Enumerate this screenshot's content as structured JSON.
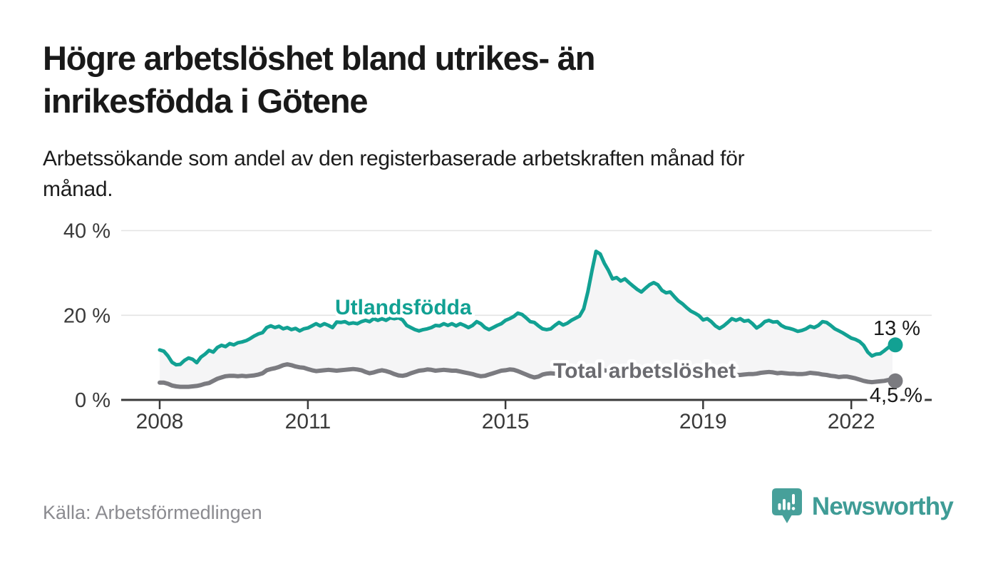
{
  "header": {
    "title_line1": "Högre arbetslöshet bland utrikes- än",
    "title_line2": "inrikesfödda i Götene",
    "subtitle_line1": "Arbetssökande som andel av den registerbaserade arbetskraften månad för",
    "subtitle_line2": "månad."
  },
  "footer": {
    "source": "Källa: Arbetsförmedlingen",
    "brand": "Newsworthy"
  },
  "colors": {
    "accent_teal": "#12A193",
    "series_gray": "#7B7B80",
    "series_label_gray": "#6B6B70",
    "area_fill": "#F5F5F6",
    "grid": "#E3E3E3",
    "axis": "#3A3A3A",
    "title_text": "#191919",
    "body_text": "#1C1C1C",
    "muted_text": "#8B8B90",
    "end_label_text": "#1A1A1A",
    "brand_teal": "#3F9C96"
  },
  "chart_data": {
    "type": "line",
    "frequency": "monthly",
    "x_start": "2008-01",
    "x_end": "2022-11",
    "x_ticks": [
      2008,
      2011,
      2015,
      2019,
      2022
    ],
    "y_ticks": [
      0,
      20,
      40
    ],
    "y_tick_suffix": " %",
    "xlim": [
      2008.0,
      2022.92
    ],
    "ylim": [
      0,
      42
    ],
    "grid": "horizontal-only",
    "legend": "inline-series-labels",
    "area_between_series": true,
    "series": [
      {
        "name": "Utlandsfödda",
        "color": "#12A193",
        "end_label": "13 %",
        "end_value": 13.0,
        "values": [
          11.8,
          11.5,
          10.4,
          8.9,
          8.3,
          8.4,
          9.3,
          9.9,
          9.6,
          8.8,
          10.1,
          10.8,
          11.7,
          11.3,
          12.4,
          12.9,
          12.6,
          13.3,
          13.0,
          13.5,
          13.7,
          14.0,
          14.5,
          15.1,
          15.6,
          15.9,
          17.1,
          17.5,
          17.1,
          17.4,
          16.8,
          17.1,
          16.6,
          16.9,
          16.3,
          16.8,
          17.0,
          17.5,
          18.0,
          17.5,
          18.0,
          17.6,
          17.1,
          18.4,
          18.3,
          18.5,
          18.0,
          18.2,
          18.0,
          18.5,
          18.8,
          18.5,
          19.2,
          18.8,
          19.2,
          18.8,
          19.4,
          19.2,
          19.4,
          18.9,
          17.6,
          17.1,
          16.6,
          16.3,
          16.6,
          16.8,
          17.1,
          17.6,
          17.5,
          18.0,
          17.6,
          18.0,
          17.5,
          18.0,
          17.6,
          17.1,
          17.6,
          18.5,
          18.0,
          17.1,
          16.6,
          17.1,
          17.6,
          18.0,
          18.8,
          19.2,
          19.7,
          20.5,
          20.2,
          19.4,
          18.5,
          18.3,
          17.5,
          16.8,
          16.6,
          16.8,
          17.6,
          18.3,
          17.7,
          18.1,
          18.8,
          19.3,
          19.8,
          21.5,
          25.5,
          30.5,
          35.1,
          34.5,
          32.3,
          30.6,
          28.6,
          28.9,
          28.1,
          28.6,
          27.7,
          26.9,
          26.1,
          25.5,
          26.4,
          27.2,
          27.7,
          27.2,
          25.9,
          25.3,
          25.5,
          24.4,
          23.4,
          22.7,
          21.8,
          21.0,
          20.5,
          19.9,
          18.9,
          19.2,
          18.5,
          17.5,
          16.9,
          17.5,
          18.3,
          19.2,
          18.8,
          19.2,
          18.6,
          18.8,
          18.0,
          17.0,
          17.6,
          18.5,
          18.8,
          18.4,
          18.5,
          17.6,
          17.1,
          16.9,
          16.6,
          16.2,
          16.4,
          16.8,
          17.4,
          17.1,
          17.6,
          18.5,
          18.3,
          17.6,
          16.8,
          16.3,
          15.8,
          15.2,
          14.6,
          14.3,
          13.8,
          12.9,
          11.3,
          10.4,
          10.8,
          10.9,
          11.6,
          12.4,
          13.0
        ]
      },
      {
        "name": "Total arbetslöshet",
        "color": "#7B7B80",
        "end_label": "4,5 %",
        "end_value": 4.5,
        "values": [
          4.1,
          4.1,
          3.8,
          3.4,
          3.2,
          3.1,
          3.1,
          3.1,
          3.2,
          3.3,
          3.5,
          3.8,
          4.0,
          4.5,
          5.0,
          5.3,
          5.6,
          5.7,
          5.7,
          5.6,
          5.7,
          5.6,
          5.7,
          5.8,
          6.0,
          6.3,
          7.0,
          7.3,
          7.5,
          7.8,
          8.2,
          8.4,
          8.2,
          7.9,
          7.7,
          7.6,
          7.3,
          7.0,
          6.8,
          6.9,
          7.0,
          7.1,
          7.0,
          6.9,
          7.0,
          7.1,
          7.2,
          7.3,
          7.2,
          7.0,
          6.6,
          6.3,
          6.5,
          6.8,
          7.0,
          6.8,
          6.5,
          6.1,
          5.8,
          5.7,
          5.9,
          6.3,
          6.6,
          6.9,
          7.0,
          7.2,
          7.1,
          6.9,
          7.0,
          7.1,
          7.0,
          6.9,
          6.9,
          6.7,
          6.5,
          6.3,
          6.1,
          5.8,
          5.6,
          5.7,
          6.0,
          6.3,
          6.6,
          6.9,
          7.0,
          7.2,
          7.1,
          6.8,
          6.4,
          6.0,
          5.6,
          5.3,
          5.5,
          6.0,
          6.2,
          6.3,
          6.2,
          6.1,
          6.2,
          6.4,
          6.6,
          6.5,
          6.3,
          6.5,
          6.8,
          7.0,
          7.2,
          7.1,
          7.0,
          6.8,
          6.6,
          6.5,
          6.4,
          6.3,
          6.2,
          6.4,
          6.6,
          6.7,
          6.8,
          6.9,
          6.8,
          6.6,
          6.4,
          6.3,
          6.2,
          6.0,
          5.9,
          6.0,
          6.1,
          6.2,
          6.1,
          6.0,
          5.9,
          5.8,
          5.7,
          5.6,
          5.5,
          5.6,
          5.7,
          5.8,
          5.9,
          5.9,
          6.0,
          6.1,
          6.1,
          6.2,
          6.4,
          6.5,
          6.6,
          6.5,
          6.3,
          6.4,
          6.3,
          6.2,
          6.2,
          6.1,
          6.1,
          6.2,
          6.4,
          6.3,
          6.2,
          6.0,
          5.9,
          5.7,
          5.6,
          5.4,
          5.5,
          5.5,
          5.3,
          5.1,
          4.8,
          4.5,
          4.3,
          4.2,
          4.3,
          4.4,
          4.5,
          4.7,
          4.5
        ]
      }
    ]
  }
}
